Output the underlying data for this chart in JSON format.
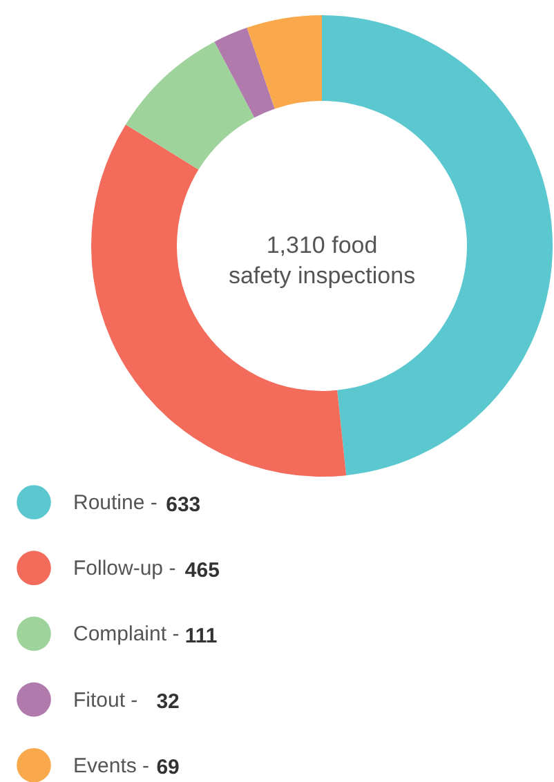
{
  "chart_data": {
    "type": "donut",
    "categories": [
      "Routine -",
      "Follow-up -",
      "Complaint -",
      "Fitout -",
      "Events -"
    ],
    "values": [
      633,
      465,
      111,
      32,
      69
    ],
    "colors": [
      "#5bc8d0",
      "#f26b5b",
      "#9fd39c",
      "#b07aad",
      "#f9a94b"
    ],
    "annotations": [
      "1,310 food safety inspections"
    ],
    "data_labels": true,
    "legend": "bottom"
  }
}
